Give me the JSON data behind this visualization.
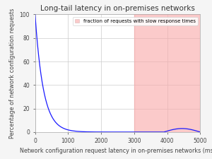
{
  "title": "Long-tail latency in on-premises networks",
  "xlabel": "Network configuration request latency in on-premises networks (ms)",
  "ylabel": "Percentage of network configuration requests",
  "xlim": [
    0,
    5000
  ],
  "ylim": [
    0,
    100
  ],
  "xticks": [
    0,
    1000,
    2000,
    3000,
    4000,
    5000
  ],
  "yticks": [
    0,
    20,
    40,
    60,
    80,
    100
  ],
  "shade_start": 3000,
  "shade_end": 5000,
  "shade_color": "#f9a8a8",
  "shade_alpha": 0.6,
  "curve_color": "#1a1aff",
  "curve_decay": 0.004,
  "bump_x_start": 3900,
  "bump_x_end": 5000,
  "bump_height": 3.0,
  "legend_label": "fraction of requests with slow response times",
  "fig_background_color": "#f5f5f5",
  "plot_background_color": "#ffffff",
  "grid_color": "#cccccc",
  "title_fontsize": 7.5,
  "label_fontsize": 5.8,
  "tick_fontsize": 5.5,
  "legend_fontsize": 5.0
}
